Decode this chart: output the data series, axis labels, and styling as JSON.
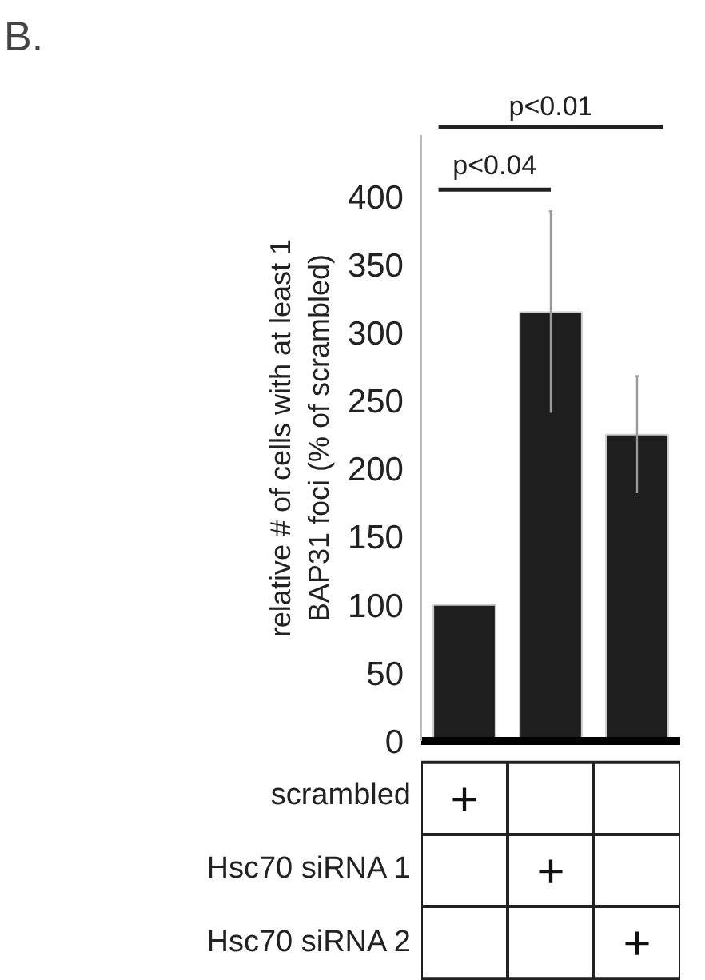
{
  "chart_data": {
    "type": "bar",
    "title": "B.",
    "ylabel": "relative # of cells with at least 1\nBAP31 foci (% of scrambled)",
    "categories": [
      null,
      null,
      null
    ],
    "values": [
      100,
      315,
      225
    ],
    "errors": [
      null,
      74,
      43
    ],
    "color": "#1e1e1e",
    "ylim": [
      0,
      445
    ],
    "yticks": [
      0,
      50,
      100,
      150,
      200,
      250,
      300,
      350,
      400
    ],
    "grid": false,
    "tick_labels": "y",
    "annotations": [
      "p<0.04",
      "p<0.01",
      "scrambled",
      "Hsc70 siRNA 1",
      "Hsc70 siRNA 2",
      "+",
      "+",
      "+"
    ]
  }
}
